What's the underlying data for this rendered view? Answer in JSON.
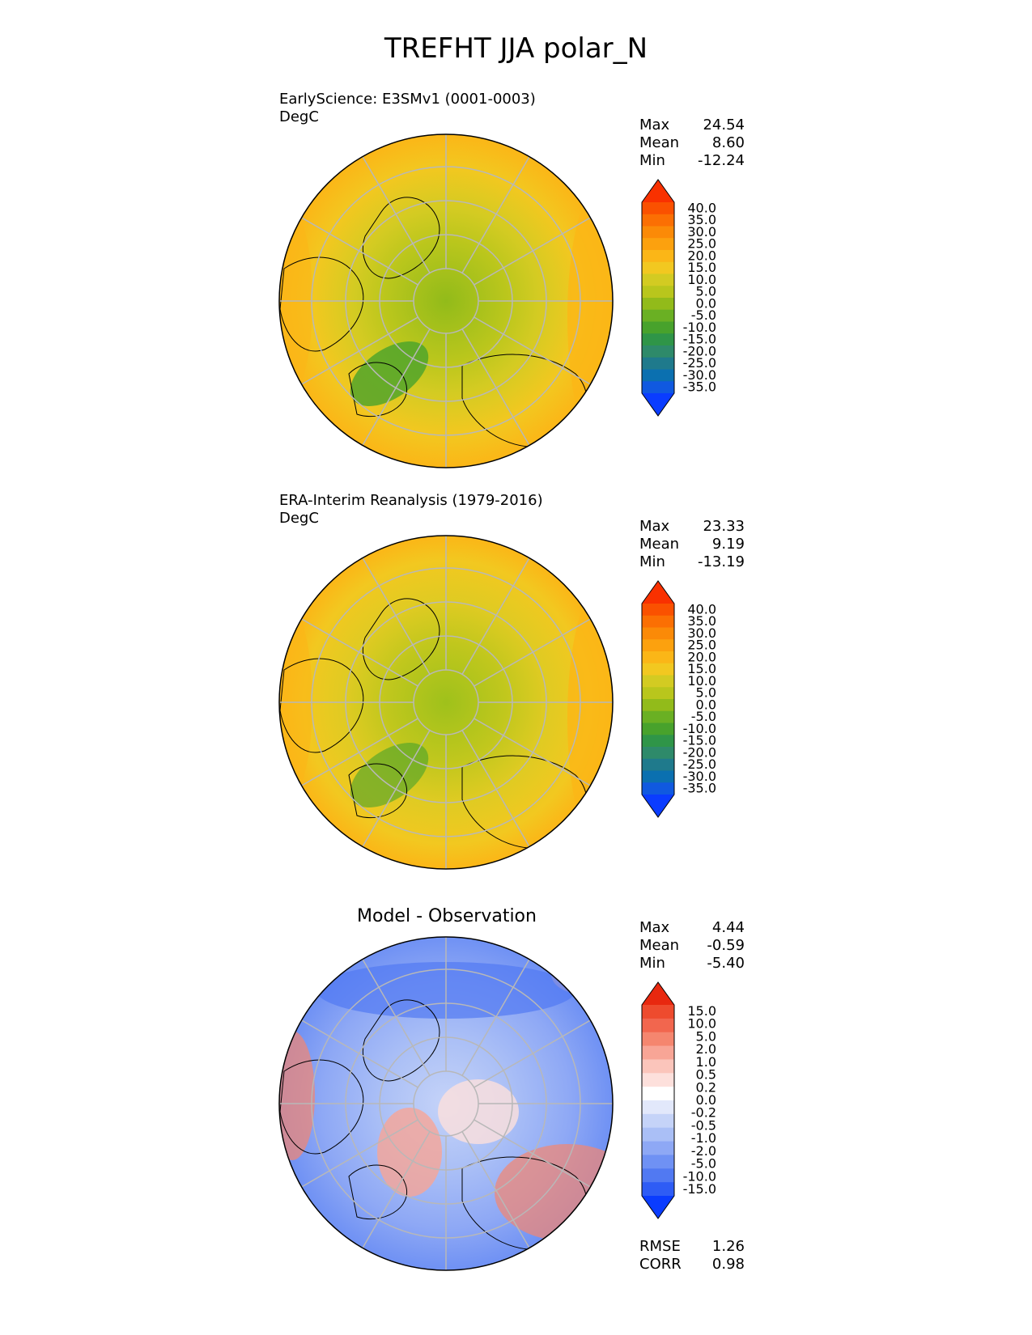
{
  "title": "TREFHT JJA polar_N",
  "colors": {
    "abs_scale": [
      "#0a3cff",
      "#1059e0",
      "#0b70b0",
      "#1f7a8c",
      "#2e8a6a",
      "#2f9548",
      "#48a22c",
      "#6ab023",
      "#92bb1a",
      "#b9c61c",
      "#d3cb22",
      "#f2c820",
      "#fbb617",
      "#fca10e",
      "#fb8a07",
      "#fb6f03",
      "#fa5100",
      "#f93100"
    ],
    "diff_scale": [
      "#0a3cff",
      "#2e5cf5",
      "#5179f2",
      "#6f91f4",
      "#8ea8f5",
      "#aabff6",
      "#c5d3f8",
      "#e2e8fb",
      "#ffffff",
      "#fde0dc",
      "#fbc5bb",
      "#f8a596",
      "#f5866f",
      "#f2664e",
      "#ee4b2e",
      "#e8280f"
    ],
    "land_outline": "#000000",
    "grid": "#b8b8b8"
  },
  "chart_data": [
    {
      "type": "heatmap",
      "subtitle": "EarlyScience: E3SMv1 (0001-0003)",
      "units": "DegC",
      "stats": [
        {
          "label": "Max",
          "value": "24.54"
        },
        {
          "label": "Mean",
          "value": "8.60"
        },
        {
          "label": "Min",
          "value": "-12.24"
        }
      ],
      "colorbar_ticks": [
        "40.0",
        "35.0",
        "30.0",
        "25.0",
        "20.0",
        "15.0",
        "10.0",
        "5.0",
        "0.0",
        "-5.0",
        "-10.0",
        "-15.0",
        "-20.0",
        "-25.0",
        "-30.0",
        "-35.0"
      ],
      "projection": "north polar stereographic"
    },
    {
      "type": "heatmap",
      "subtitle": "ERA-Interim Reanalysis (1979-2016)",
      "units": "DegC",
      "stats": [
        {
          "label": "Max",
          "value": "23.33"
        },
        {
          "label": "Mean",
          "value": "9.19"
        },
        {
          "label": "Min",
          "value": "-13.19"
        }
      ],
      "colorbar_ticks": [
        "40.0",
        "35.0",
        "30.0",
        "25.0",
        "20.0",
        "15.0",
        "10.0",
        "5.0",
        "0.0",
        "-5.0",
        "-10.0",
        "-15.0",
        "-20.0",
        "-25.0",
        "-30.0",
        "-35.0"
      ],
      "projection": "north polar stereographic"
    },
    {
      "type": "heatmap",
      "subtitle": "Model - Observation",
      "stats": [
        {
          "label": "Max",
          "value": "4.44"
        },
        {
          "label": "Mean",
          "value": "-0.59"
        },
        {
          "label": "Min",
          "value": "-5.40"
        }
      ],
      "metrics": [
        {
          "label": "RMSE",
          "value": "1.26"
        },
        {
          "label": "CORR",
          "value": "0.98"
        }
      ],
      "colorbar_ticks": [
        "15.0",
        "10.0",
        "5.0",
        "2.0",
        "1.0",
        "0.5",
        "0.2",
        "0.0",
        "-0.2",
        "-0.5",
        "-1.0",
        "-2.0",
        "-5.0",
        "-10.0",
        "-15.0"
      ],
      "projection": "north polar stereographic"
    }
  ]
}
